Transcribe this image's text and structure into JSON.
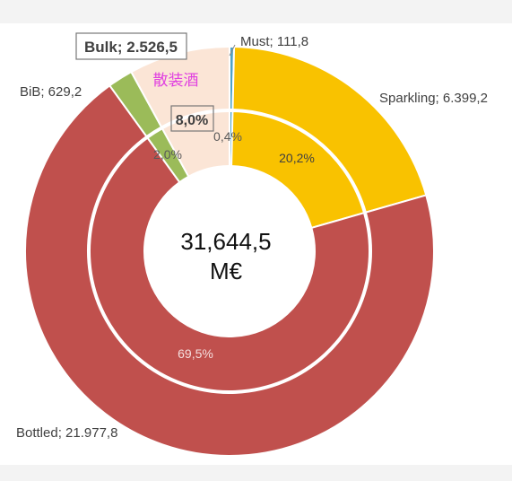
{
  "chart_data": {
    "type": "donut",
    "center_label_line1": "31,644,5",
    "center_label_line2": "M€",
    "outer_ring": [
      {
        "name": "Must",
        "label": "Must; 111,8",
        "value": 111.8,
        "color": "#4fa3c7"
      },
      {
        "name": "Sparkling",
        "label": "Sparkling; 6.399,2",
        "value": 6399.2,
        "color": "#f9c200"
      },
      {
        "name": "Bottled",
        "label": "Bottled; 21.977,8",
        "value": 21977.8,
        "color": "#c0504d"
      },
      {
        "name": "BiB",
        "label": "BiB; 629,2",
        "value": 629.2,
        "color": "#9bbb59"
      },
      {
        "name": "Bulk",
        "label": "Bulk; 2.526,5",
        "value": 2526.5,
        "color": "#fbe5d6"
      }
    ],
    "inner_ring_labels": [
      {
        "name": "Must",
        "text": "0,4%"
      },
      {
        "name": "Sparkling",
        "text": "20,2%"
      },
      {
        "name": "Bottled",
        "text": "69,5%"
      },
      {
        "name": "BiB",
        "text": "2,0%"
      },
      {
        "name": "Bulk",
        "text": "8,0%"
      }
    ],
    "bulk_annotation": "散装酒",
    "colors": {
      "must": "#4fa3c7",
      "sparkling": "#f9c200",
      "bottled": "#c0504d",
      "bib": "#9bbb59",
      "bulk": "#fbe5d6",
      "annotation_text": "#e040e0"
    }
  }
}
